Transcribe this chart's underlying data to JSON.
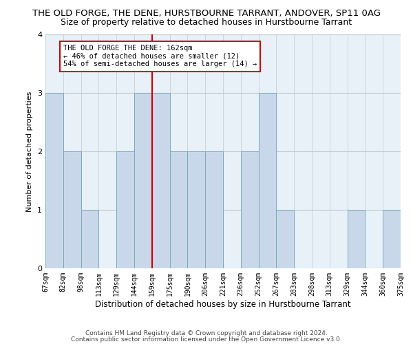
{
  "title": "THE OLD FORGE, THE DENE, HURSTBOURNE TARRANT, ANDOVER, SP11 0AG",
  "subtitle": "Size of property relative to detached houses in Hurstbourne Tarrant",
  "xlabel": "Distribution of detached houses by size in Hurstbourne Tarrant",
  "ylabel": "Number of detached properties",
  "bin_labels": [
    "67sqm",
    "82sqm",
    "98sqm",
    "113sqm",
    "129sqm",
    "144sqm",
    "159sqm",
    "175sqm",
    "190sqm",
    "206sqm",
    "221sqm",
    "236sqm",
    "252sqm",
    "267sqm",
    "283sqm",
    "298sqm",
    "313sqm",
    "329sqm",
    "344sqm",
    "360sqm",
    "375sqm"
  ],
  "bar_values": [
    3,
    2,
    1,
    0,
    2,
    3,
    3,
    2,
    2,
    2,
    0,
    2,
    3,
    1,
    0,
    0,
    0,
    1,
    0,
    1
  ],
  "bar_color": "#c8d8ea",
  "bar_edge_color": "#7aaabb",
  "vline_x_index": 6,
  "vline_color": "#cc0000",
  "annotation_text": "THE OLD FORGE THE DENE: 162sqm\n← 46% of detached houses are smaller (12)\n54% of semi-detached houses are larger (14) →",
  "annotation_box_color": "#cc0000",
  "ylim": [
    0,
    4
  ],
  "yticks": [
    0,
    1,
    2,
    3,
    4
  ],
  "footer_line1": "Contains HM Land Registry data © Crown copyright and database right 2024.",
  "footer_line2": "Contains public sector information licensed under the Open Government Licence v3.0.",
  "bg_color": "#ffffff",
  "plot_bg_color": "#e8f0f8",
  "grid_color": "#c0c8d0",
  "title_fontsize": 9.5,
  "subtitle_fontsize": 9,
  "xlabel_fontsize": 8.5,
  "ylabel_fontsize": 8,
  "tick_fontsize": 7,
  "annotation_fontsize": 7.5,
  "footer_fontsize": 6.5
}
